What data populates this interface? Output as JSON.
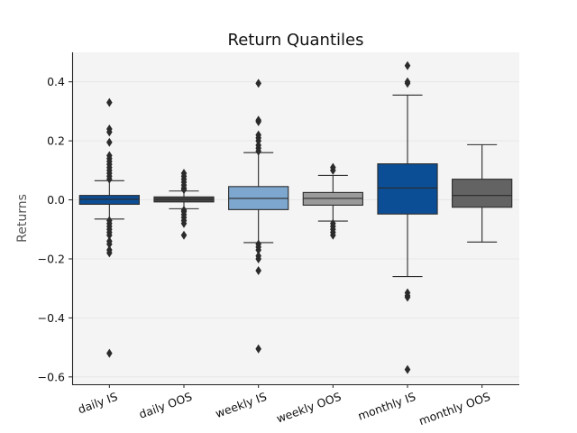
{
  "chart_data": {
    "type": "box",
    "title": "Return Quantiles",
    "ylabel": "Returns",
    "xlabel": "",
    "ylim": [
      -0.625,
      0.5
    ],
    "yticks": [
      0.4,
      0.2,
      0.0,
      -0.2,
      -0.4,
      -0.6
    ],
    "ytick_labels": [
      "0.4",
      "0.2",
      "0.0",
      "−0.2",
      "−0.4",
      "−0.6"
    ],
    "grid": true,
    "colors": {
      "plot_bg": "#f4f4f4",
      "grid": "#e4e4e4",
      "line": "#2b2b2b"
    },
    "categories": [
      "daily IS",
      "daily OOS",
      "weekly IS",
      "weekly OOS",
      "monthly IS",
      "monthly OOS"
    ],
    "boxes": [
      {
        "name": "daily IS",
        "color": "#0b4e96",
        "whislo": -0.065,
        "q1": -0.015,
        "med": 0.002,
        "q3": 0.015,
        "whishi": 0.065,
        "fliers": [
          0.33,
          0.24,
          0.23,
          0.195,
          0.15,
          0.14,
          0.13,
          0.12,
          0.11,
          0.1,
          0.09,
          0.08,
          0.07,
          -0.07,
          -0.08,
          -0.09,
          -0.1,
          -0.11,
          -0.12,
          -0.14,
          -0.15,
          -0.17,
          -0.18,
          -0.52
        ]
      },
      {
        "name": "daily OOS",
        "color": "#454545",
        "whislo": -0.03,
        "q1": -0.007,
        "med": 0.002,
        "q3": 0.01,
        "whishi": 0.03,
        "fliers": [
          0.09,
          0.08,
          0.07,
          0.06,
          0.05,
          0.04,
          0.035,
          -0.035,
          -0.04,
          -0.05,
          -0.06,
          -0.07,
          -0.08,
          -0.12
        ]
      },
      {
        "name": "weekly IS",
        "color": "#7ea7cf",
        "whislo": -0.145,
        "q1": -0.033,
        "med": 0.005,
        "q3": 0.045,
        "whishi": 0.16,
        "fliers": [
          0.395,
          0.27,
          0.265,
          0.22,
          0.21,
          0.2,
          0.185,
          0.175,
          0.165,
          -0.15,
          -0.16,
          -0.17,
          -0.19,
          -0.2,
          -0.24,
          -0.505
        ]
      },
      {
        "name": "weekly OOS",
        "color": "#9a9a9a",
        "whislo": -0.072,
        "q1": -0.018,
        "med": 0.005,
        "q3": 0.025,
        "whishi": 0.083,
        "fliers": [
          0.11,
          0.1,
          -0.08,
          -0.09,
          -0.1,
          -0.11,
          -0.12
        ]
      },
      {
        "name": "monthly IS",
        "color": "#0b4e96",
        "whislo": -0.26,
        "q1": -0.048,
        "med": 0.04,
        "q3": 0.122,
        "whishi": 0.355,
        "fliers": [
          0.455,
          0.4,
          0.395,
          -0.315,
          -0.325,
          -0.33,
          -0.575
        ]
      },
      {
        "name": "monthly OOS",
        "color": "#636363",
        "whislo": -0.143,
        "q1": -0.025,
        "med": 0.015,
        "q3": 0.07,
        "whishi": 0.187,
        "fliers": []
      }
    ]
  }
}
